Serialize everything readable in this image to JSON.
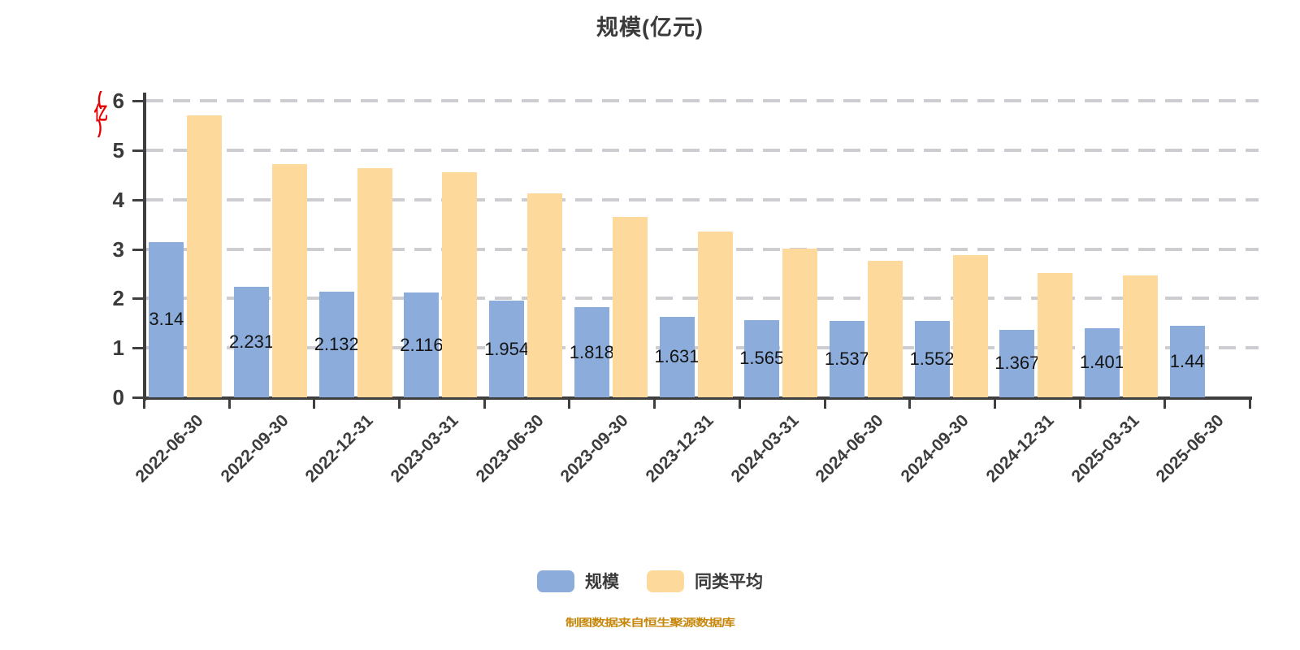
{
  "title": "规模(亿元)",
  "y_axis_unit": "(亿)",
  "note": "制图数据来自恒生聚源数据库",
  "colors": {
    "scale_bar": "#8caddc",
    "average_bar": "#fdda9b",
    "gridline": "#cdcdd1",
    "axis": "#3f3f3f",
    "unit_label": "#e60000",
    "note_text": "#c6870b"
  },
  "legend": [
    {
      "label": "规模",
      "color": "#8caddc"
    },
    {
      "label": "同类平均",
      "color": "#fdda9b"
    }
  ],
  "chart_data": {
    "type": "bar",
    "title": "规模(亿元)",
    "categories": [
      "2022-06-30",
      "2022-09-30",
      "2022-12-31",
      "2023-03-31",
      "2023-06-30",
      "2023-09-30",
      "2023-12-31",
      "2024-03-31",
      "2024-06-30",
      "2024-09-30",
      "2024-12-31",
      "2025-03-31",
      "2025-06-30"
    ],
    "series": [
      {
        "name": "规模",
        "color": "#8caddc",
        "values": [
          3.14,
          2.231,
          2.132,
          2.116,
          1.954,
          1.818,
          1.631,
          1.565,
          1.537,
          1.552,
          1.367,
          1.401,
          1.44
        ],
        "labels": [
          "3.14",
          "2.231",
          "2.132",
          "2.116",
          "1.954",
          "1.818",
          "1.631",
          "1.565",
          "1.537",
          "1.552",
          "1.367",
          "1.401",
          "1.44"
        ]
      },
      {
        "name": "同类平均",
        "color": "#fdda9b",
        "values": [
          5.7,
          4.71,
          4.64,
          4.55,
          4.12,
          3.65,
          3.35,
          3.01,
          2.76,
          2.87,
          2.51,
          2.47,
          null
        ]
      }
    ],
    "ylabel": "(亿)",
    "xlabel": "",
    "ylim": [
      0,
      6
    ],
    "yticks": [
      0,
      1,
      2,
      3,
      4,
      5,
      6
    ],
    "grid": "horizontal-dashed",
    "legend_position": "bottom",
    "note": "制图数据来自恒生聚源数据库"
  }
}
